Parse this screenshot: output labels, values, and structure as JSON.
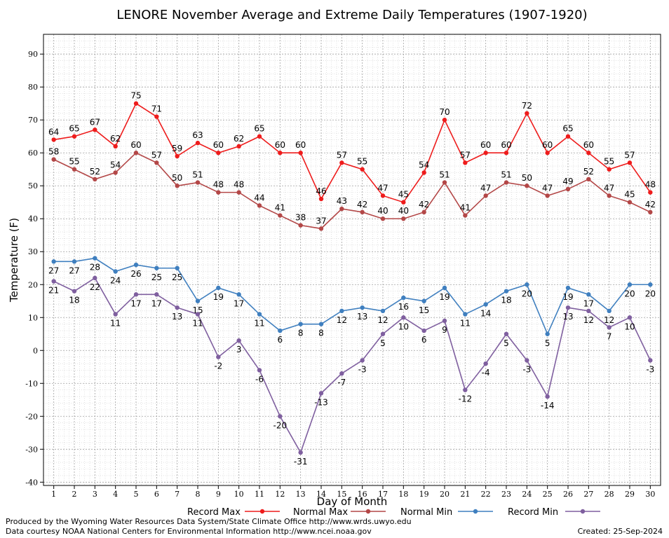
{
  "chart_data": {
    "type": "line",
    "title": "LENORE November Average and Extreme Daily Temperatures (1907-1920)",
    "xlabel": "Day of Month",
    "ylabel": "Temperature (F)",
    "xlim": [
      0.5,
      30.5
    ],
    "ylim": [
      -41,
      96
    ],
    "yticks": [
      -40,
      -30,
      -20,
      -10,
      0,
      10,
      20,
      30,
      40,
      50,
      60,
      70,
      80,
      90
    ],
    "x": [
      1,
      2,
      3,
      4,
      5,
      6,
      7,
      8,
      9,
      10,
      11,
      12,
      13,
      14,
      15,
      16,
      17,
      18,
      19,
      20,
      21,
      22,
      23,
      24,
      25,
      26,
      27,
      28,
      29,
      30
    ],
    "grid": true,
    "legend_position": "bottom",
    "series": [
      {
        "name": "Record Max",
        "color": "#ee1c1c",
        "label_pos": "above",
        "values": [
          64,
          65,
          67,
          62,
          75,
          71,
          59,
          63,
          60,
          62,
          65,
          60,
          60,
          46,
          57,
          55,
          47,
          45,
          54,
          70,
          57,
          60,
          60,
          72,
          60,
          65,
          60,
          55,
          57,
          48
        ]
      },
      {
        "name": "Normal Max",
        "color": "#b34747",
        "label_pos": "above",
        "values": [
          58,
          55,
          52,
          54,
          60,
          57,
          50,
          51,
          48,
          48,
          44,
          41,
          38,
          37,
          43,
          42,
          40,
          40,
          42,
          51,
          41,
          47,
          51,
          50,
          47,
          49,
          52,
          47,
          45,
          42
        ]
      },
      {
        "name": "Normal Min",
        "color": "#3f7fbf",
        "label_pos": "below",
        "values": [
          27,
          27,
          28,
          24,
          26,
          25,
          25,
          15,
          19,
          17,
          11,
          6,
          8,
          8,
          12,
          13,
          12,
          16,
          15,
          19,
          11,
          14,
          18,
          20,
          5,
          19,
          17,
          12,
          20,
          20
        ]
      },
      {
        "name": "Record Min",
        "color": "#7f5f9f",
        "label_pos": "below",
        "values": [
          21,
          18,
          22,
          11,
          17,
          17,
          13,
          11,
          -2,
          3,
          -6,
          -20,
          -31,
          -13,
          -7,
          -3,
          5,
          10,
          6,
          9,
          -12,
          -4,
          5,
          -3,
          -14,
          13,
          12,
          7,
          10,
          -3
        ]
      }
    ]
  },
  "footer": {
    "line1": "Produced by the Wyoming Water Resources Data System/State Climate Office http://www.wrds.uwyo.edu",
    "line2": "Data courtesy NOAA National Centers for Environmental Information http://www.ncei.noaa.gov",
    "created": "Created:  25-Sep-2024"
  }
}
